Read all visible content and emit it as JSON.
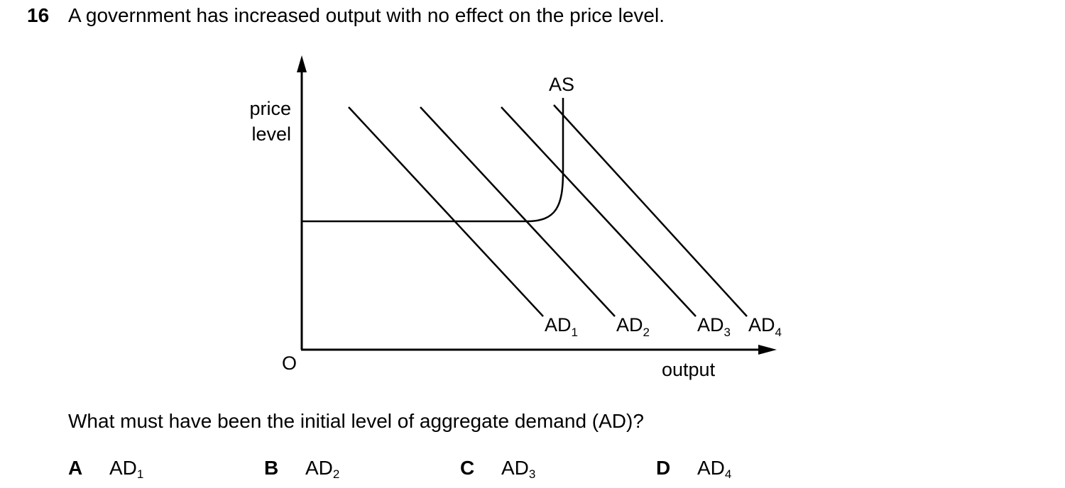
{
  "question": {
    "number": "16",
    "stem": "A government has increased output with no effect on the price level.",
    "prompt": "What must have been the initial level of aggregate demand (AD)?"
  },
  "diagram": {
    "y_axis_label_line1": "price",
    "y_axis_label_line2": "level",
    "x_axis_label": "output",
    "origin_label": "O",
    "supply_label": "AS",
    "demand_curves": [
      {
        "base": "AD",
        "sub": "1"
      },
      {
        "base": "AD",
        "sub": "2"
      },
      {
        "base": "AD",
        "sub": "3"
      },
      {
        "base": "AD",
        "sub": "4"
      }
    ]
  },
  "options": [
    {
      "letter": "A",
      "base": "AD",
      "sub": "1"
    },
    {
      "letter": "B",
      "base": "AD",
      "sub": "2"
    },
    {
      "letter": "C",
      "base": "AD",
      "sub": "3"
    },
    {
      "letter": "D",
      "base": "AD",
      "sub": "4"
    }
  ]
}
